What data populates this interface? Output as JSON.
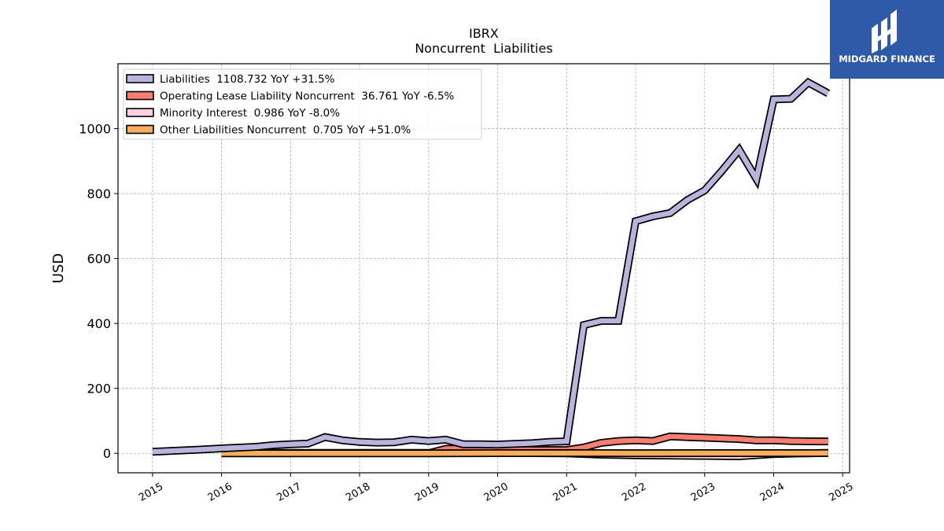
{
  "chart_data": {
    "type": "line",
    "title": "IBRX",
    "subtitle": "Noncurrent  Liabilities",
    "ylabel": "USD",
    "xlabel": "",
    "xlim": [
      2014.5,
      2025.1
    ],
    "ylim": [
      -60,
      1200
    ],
    "grid": true,
    "legend_position": "top-left",
    "x_ticks": [
      "2015",
      "2016",
      "2017",
      "2018",
      "2019",
      "2020",
      "2021",
      "2022",
      "2023",
      "2024",
      "2025"
    ],
    "y_ticks": [
      "0",
      "200",
      "400",
      "600",
      "800",
      "1000"
    ],
    "series": [
      {
        "name": "Liabilities",
        "legend": "Liabilities  1108.732 YoY +31.5%",
        "color": "#b9b4dc",
        "x": [
          2015.0,
          2015.75,
          2016.0,
          2016.5,
          2016.75,
          2017.0,
          2017.25,
          2017.5,
          2017.75,
          2018.0,
          2018.25,
          2018.5,
          2018.75,
          2019.0,
          2019.25,
          2019.5,
          2019.75,
          2020.0,
          2020.25,
          2020.5,
          2020.75,
          2021.0,
          2021.25,
          2021.5,
          2021.75,
          2022.0,
          2022.25,
          2022.5,
          2022.75,
          2023.0,
          2023.25,
          2023.5,
          2023.75,
          2024.0,
          2024.25,
          2024.5,
          2024.79
        ],
        "values": [
          5,
          12,
          15,
          20,
          25,
          28,
          30,
          50,
          40,
          35,
          33,
          34,
          42,
          38,
          42,
          28,
          28,
          27,
          29,
          31,
          35,
          37,
          395,
          408,
          408,
          715,
          730,
          740,
          780,
          810,
          870,
          935,
          845,
          1090,
          1092,
          1142,
          1108.732
        ]
      },
      {
        "name": "Operating Lease Liability Noncurrent",
        "legend": "Operating Lease Liability Noncurrent  36.761 YoY -6.5%",
        "color": "#f47e6f",
        "x": [
          2019.0,
          2019.25,
          2019.5,
          2019.75,
          2020.0,
          2020.25,
          2020.5,
          2020.75,
          2021.0,
          2021.25,
          2021.5,
          2021.75,
          2022.0,
          2022.25,
          2022.5,
          2022.75,
          2023.0,
          2023.25,
          2023.5,
          2023.75,
          2024.0,
          2024.25,
          2024.5,
          2024.79
        ],
        "values": [
          0,
          14,
          14,
          13,
          12,
          11,
          10,
          10,
          10,
          18,
          32,
          38,
          40,
          38,
          52,
          50,
          48,
          46,
          44,
          40,
          40,
          38,
          37,
          36.761
        ]
      },
      {
        "name": "Minority Interest",
        "legend": "Minority Interest  0.986 YoY -8.0%",
        "color": "#fbd0e2",
        "x": [
          2016.0,
          2017.0,
          2018.0,
          2019.0,
          2020.0,
          2021.0,
          2021.5,
          2022.0,
          2022.5,
          2023.0,
          2023.5,
          2024.0,
          2024.5,
          2024.79
        ],
        "values": [
          1,
          1,
          1,
          1,
          1,
          0,
          -4,
          -6,
          -7,
          -8,
          -9,
          -2,
          0,
          0.986
        ]
      },
      {
        "name": "Other Liabilities Noncurrent",
        "legend": "Other Liabilities Noncurrent  0.705 YoY +51.0%",
        "color": "#f7ad60",
        "x": [
          2016.0,
          2017.0,
          2018.0,
          2019.0,
          2020.0,
          2021.0,
          2022.0,
          2023.0,
          2024.0,
          2024.79
        ],
        "values": [
          0,
          0,
          0,
          0,
          0.5,
          0.5,
          0.4,
          0.5,
          0.5,
          0.705
        ]
      }
    ]
  },
  "logo": {
    "name": "MIDGARD FINANCE",
    "background": "#2e5aa8"
  }
}
